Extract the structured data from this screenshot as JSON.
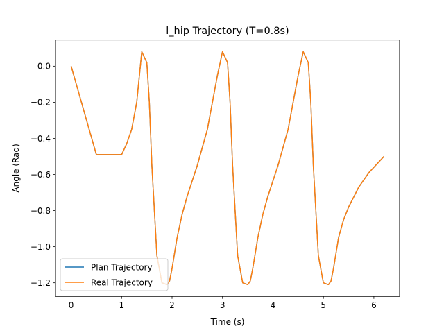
{
  "chart_data": {
    "type": "line",
    "title": "l_hip Trajectory (T=0.8s)",
    "xlabel": "Time (s)",
    "ylabel": "Angle (Rad)",
    "xlim": [
      -0.31,
      6.51
    ],
    "ylim": [
      -1.275,
      0.145
    ],
    "xticks": [
      0,
      1,
      2,
      3,
      4,
      5,
      6
    ],
    "xtick_labels": [
      "0",
      "1",
      "2",
      "3",
      "4",
      "5",
      "6"
    ],
    "yticks": [
      0.0,
      -0.2,
      -0.4,
      -0.6,
      -0.8,
      -1.0,
      -1.2
    ],
    "ytick_labels": [
      "0.0",
      "−0.2",
      "−0.4",
      "−0.6",
      "−0.8",
      "−1.0",
      "−1.2"
    ],
    "grid": false,
    "legend_position": "lower-left",
    "series": [
      {
        "name": "Plan Trajectory",
        "color": "#1f77b4",
        "x": [
          0.0,
          0.5,
          1.0,
          1.1,
          1.2,
          1.3,
          1.4,
          1.5,
          1.55,
          1.6,
          1.7,
          1.8,
          1.9,
          1.95,
          2.0,
          2.1,
          2.2,
          2.3,
          2.5,
          2.7,
          2.9,
          3.0,
          3.1,
          3.15,
          3.2,
          3.3,
          3.4,
          3.5,
          3.55,
          3.6,
          3.7,
          3.8,
          3.9,
          4.1,
          4.3,
          4.5,
          4.6,
          4.7,
          4.75,
          4.8,
          4.9,
          5.0,
          5.1,
          5.15,
          5.2,
          5.3,
          5.4,
          5.5,
          5.7,
          5.9,
          6.2
        ],
        "y": [
          0.0,
          -0.49,
          -0.49,
          -0.43,
          -0.35,
          -0.2,
          0.08,
          0.02,
          -0.2,
          -0.55,
          -1.05,
          -1.2,
          -1.21,
          -1.19,
          -1.12,
          -0.95,
          -0.82,
          -0.72,
          -0.55,
          -0.35,
          -0.05,
          0.08,
          0.02,
          -0.2,
          -0.55,
          -1.05,
          -1.2,
          -1.21,
          -1.19,
          -1.12,
          -0.95,
          -0.82,
          -0.72,
          -0.55,
          -0.35,
          -0.05,
          0.08,
          0.02,
          -0.2,
          -0.55,
          -1.05,
          -1.2,
          -1.21,
          -1.19,
          -1.12,
          -0.95,
          -0.85,
          -0.78,
          -0.67,
          -0.59,
          -0.5
        ]
      },
      {
        "name": "Real Trajectory",
        "color": "#ff7f0e",
        "x": [
          0.0,
          0.5,
          1.0,
          1.1,
          1.2,
          1.3,
          1.4,
          1.5,
          1.55,
          1.6,
          1.7,
          1.8,
          1.9,
          1.95,
          2.0,
          2.1,
          2.2,
          2.3,
          2.5,
          2.7,
          2.9,
          3.0,
          3.1,
          3.15,
          3.2,
          3.3,
          3.4,
          3.5,
          3.55,
          3.6,
          3.7,
          3.8,
          3.9,
          4.1,
          4.3,
          4.5,
          4.6,
          4.7,
          4.75,
          4.8,
          4.9,
          5.0,
          5.1,
          5.15,
          5.2,
          5.3,
          5.4,
          5.5,
          5.7,
          5.9,
          6.2
        ],
        "y": [
          0.0,
          -0.49,
          -0.49,
          -0.43,
          -0.35,
          -0.2,
          0.08,
          0.02,
          -0.2,
          -0.55,
          -1.05,
          -1.2,
          -1.21,
          -1.19,
          -1.12,
          -0.95,
          -0.82,
          -0.72,
          -0.55,
          -0.35,
          -0.05,
          0.08,
          0.02,
          -0.2,
          -0.55,
          -1.05,
          -1.2,
          -1.21,
          -1.19,
          -1.12,
          -0.95,
          -0.82,
          -0.72,
          -0.55,
          -0.35,
          -0.05,
          0.08,
          0.02,
          -0.2,
          -0.55,
          -1.05,
          -1.2,
          -1.21,
          -1.19,
          -1.12,
          -0.95,
          -0.85,
          -0.78,
          -0.67,
          -0.59,
          -0.5
        ]
      }
    ]
  }
}
